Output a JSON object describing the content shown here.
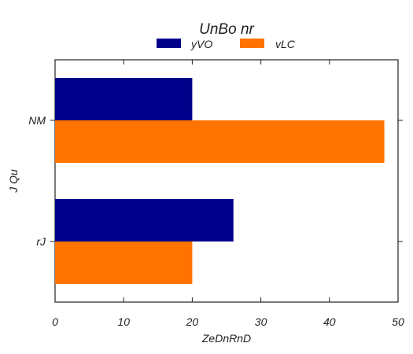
{
  "chart_data": {
    "type": "bar",
    "orientation": "horizontal",
    "title": "UnBo nr",
    "xlabel": "ZeDnRnD",
    "ylabel": "J Qu",
    "categories": [
      "NM",
      "rJ"
    ],
    "series": [
      {
        "name": "yVO",
        "values": [
          20,
          26
        ],
        "color": "#00008b"
      },
      {
        "name": "vLC",
        "values": [
          48,
          20
        ],
        "color": "#ff7300"
      }
    ],
    "xlim": [
      0,
      50
    ],
    "xticks": [
      0,
      10,
      20,
      30,
      40,
      50
    ],
    "grid": false,
    "legend_position": "top-center"
  }
}
